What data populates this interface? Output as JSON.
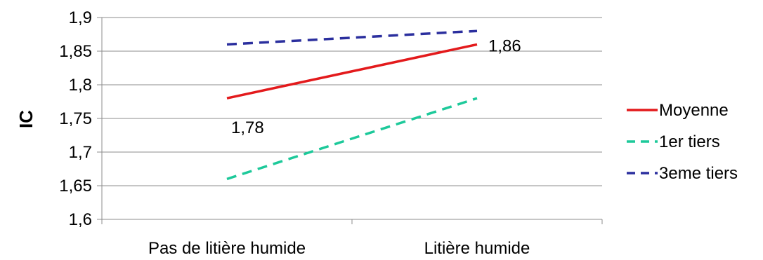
{
  "chart_data": {
    "type": "line",
    "title": "",
    "xlabel": "",
    "ylabel": "IC",
    "categories": [
      "Pas de litière humide",
      "Litière humide"
    ],
    "ylim": [
      1.6,
      1.9
    ],
    "yticks": [
      "1,6",
      "1,65",
      "1,7",
      "1,75",
      "1,8",
      "1,85",
      "1,9"
    ],
    "ytick_values": [
      1.6,
      1.65,
      1.7,
      1.75,
      1.8,
      1.85,
      1.9
    ],
    "grid": true,
    "legend_position": "right",
    "series": [
      {
        "name": "Moyenne",
        "values": [
          1.78,
          1.86
        ],
        "color": "#e31a1c",
        "dash": "solid",
        "data_labels": [
          "1,78",
          "1,86"
        ]
      },
      {
        "name": "1er tiers",
        "values": [
          1.66,
          1.78
        ],
        "color": "#1dc99a",
        "dash": "dashed"
      },
      {
        "name": "3eme tiers",
        "values": [
          1.86,
          1.88
        ],
        "color": "#2b2f9e",
        "dash": "dashed"
      }
    ]
  }
}
